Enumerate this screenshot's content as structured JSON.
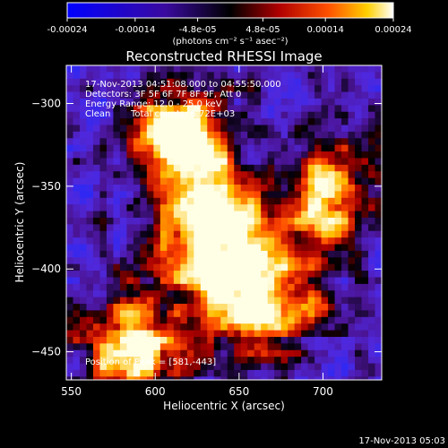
{
  "colorbar": {
    "tick_labels": [
      "-0.00024",
      "-0.00014",
      "-4.8e-05",
      "4.8e-05",
      "0.00014",
      "0.00024"
    ],
    "tick_values": [
      -0.00024,
      -0.00014,
      -4.8e-05,
      4.8e-05,
      0.00014,
      0.00024
    ],
    "range": [
      -0.00024,
      0.00024
    ],
    "unit_label": "(photons cm⁻² s⁻¹ asec⁻²)",
    "colormap": "rhessi-blue-black-red-yellow-white"
  },
  "chart_data": {
    "type": "heatmap",
    "title": "Reconstructed RHESSI Image",
    "xlabel": "Heliocentric X (arcsec)",
    "ylabel": "Heliocentric Y (arcsec)",
    "xlim": [
      547,
      735
    ],
    "ylim": [
      -467,
      -277
    ],
    "x_ticks": [
      550,
      600,
      650,
      700
    ],
    "y_ticks": [
      -300,
      -350,
      -400,
      -450
    ],
    "annotations": {
      "time_range": "17-Nov-2013 04:51:08.000 to 04:55:50.000",
      "detectors": "Detectors: 3F 5F 6F 7F 8F 9F, Att 0",
      "energy_range": "Energy Range: 12.0 - 25.0 keV",
      "method": "Clean",
      "total_counts": "Total counts: 6.72E+03",
      "peak_position": "Position of Peak = [581,-443]"
    },
    "peak": [
      581,
      -443
    ],
    "bright_regions": [
      {
        "x": 615,
        "y": -320,
        "strength": 0.9
      },
      {
        "x": 630,
        "y": -380,
        "strength": 0.95
      },
      {
        "x": 655,
        "y": -420,
        "strength": 0.9
      },
      {
        "x": 700,
        "y": -355,
        "strength": 0.8
      },
      {
        "x": 585,
        "y": -445,
        "strength": 1.0
      }
    ]
  },
  "footer": {
    "timestamp": "17-Nov-2013 05:03"
  }
}
